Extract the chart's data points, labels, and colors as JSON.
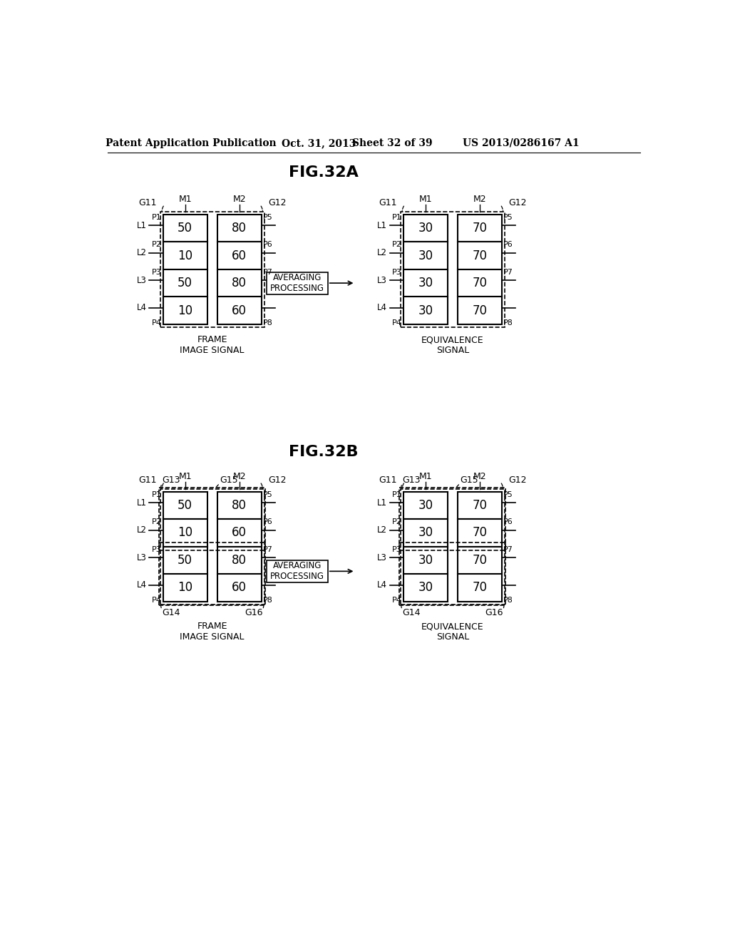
{
  "bg_color": "#ffffff",
  "header_text": "Patent Application Publication",
  "header_date": "Oct. 31, 2013",
  "header_sheet": "Sheet 32 of 39",
  "header_patent": "US 2013/0286167 A1",
  "fig32a_title": "FIG.32A",
  "fig32b_title": "FIG.32B"
}
